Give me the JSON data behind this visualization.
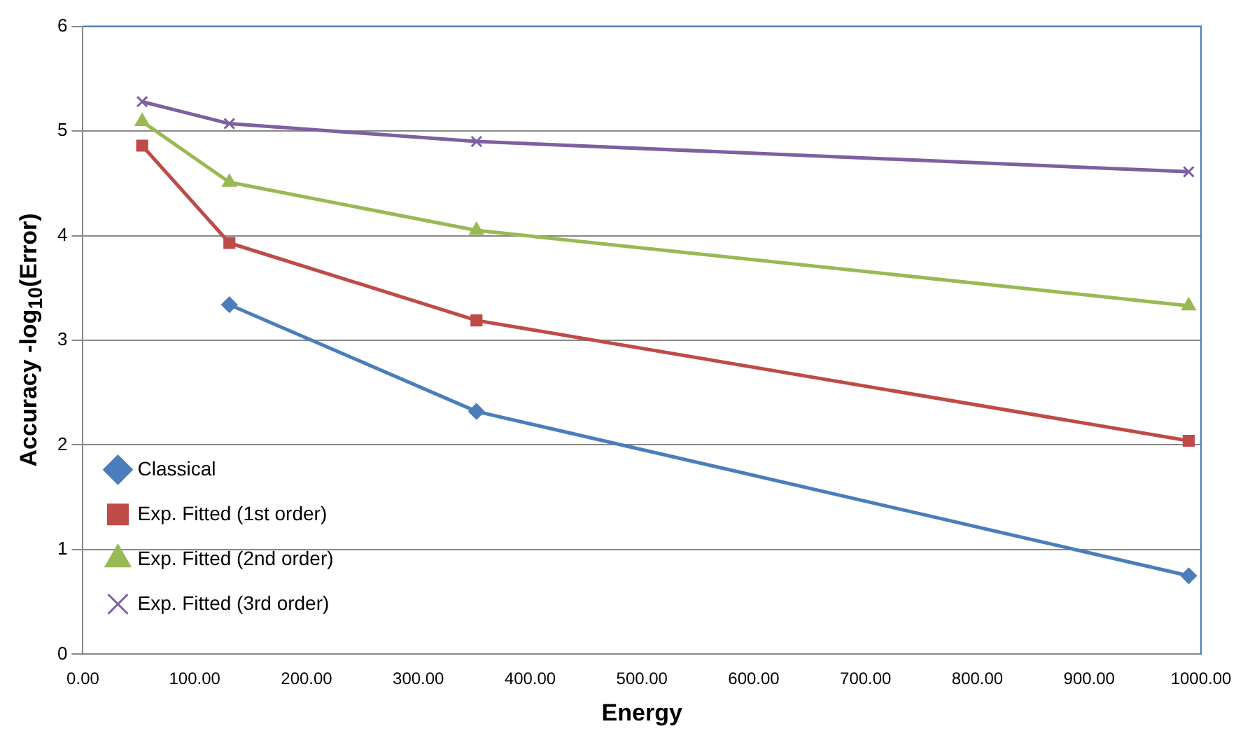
{
  "chart_data": {
    "type": "line",
    "xlabel": "Energy",
    "ylabel": "Accuracy -log$_{10}$(Error)",
    "xlim": [
      0,
      1000
    ],
    "xticks": [
      {
        "value": 0,
        "label": "0.00"
      },
      {
        "value": 100,
        "label": "100.00"
      },
      {
        "value": 200,
        "label": "200.00"
      },
      {
        "value": 300,
        "label": "300.00"
      },
      {
        "value": 400,
        "label": "400.00"
      },
      {
        "value": 500,
        "label": "500.00"
      },
      {
        "value": 600,
        "label": "600.00"
      },
      {
        "value": 700,
        "label": "700.00"
      },
      {
        "value": 800,
        "label": "800.00"
      },
      {
        "value": 900,
        "label": "900.00"
      },
      {
        "value": 1000,
        "label": "1000.00"
      }
    ],
    "ylim": [
      0,
      6
    ],
    "yticks": [
      0,
      1,
      2,
      3,
      4,
      5,
      6
    ],
    "grid": "y",
    "legend": "bottom left",
    "series": [
      {
        "name": "Classical",
        "color": "#4a7ebb",
        "marker": "diamond",
        "x": [
          131,
          352,
          989
        ],
        "values": [
          3.34,
          2.32,
          0.75
        ]
      },
      {
        "name": "Exp. Fitted (1st order)",
        "color": "#be4b48",
        "marker": "square",
        "x": [
          53,
          131,
          352,
          989
        ],
        "values": [
          4.86,
          3.93,
          3.19,
          2.04
        ]
      },
      {
        "name": "Exp. Fitted (2nd order)",
        "color": "#98b954",
        "marker": "triangle",
        "x": [
          53,
          131,
          352,
          989
        ],
        "values": [
          5.09,
          4.51,
          4.05,
          3.33
        ]
      },
      {
        "name": "Exp. Fitted (3rd order)",
        "color": "#7d60a0",
        "marker": "cross",
        "x": [
          53,
          131,
          352,
          989
        ],
        "values": [
          5.28,
          5.07,
          4.9,
          4.61
        ]
      }
    ]
  }
}
